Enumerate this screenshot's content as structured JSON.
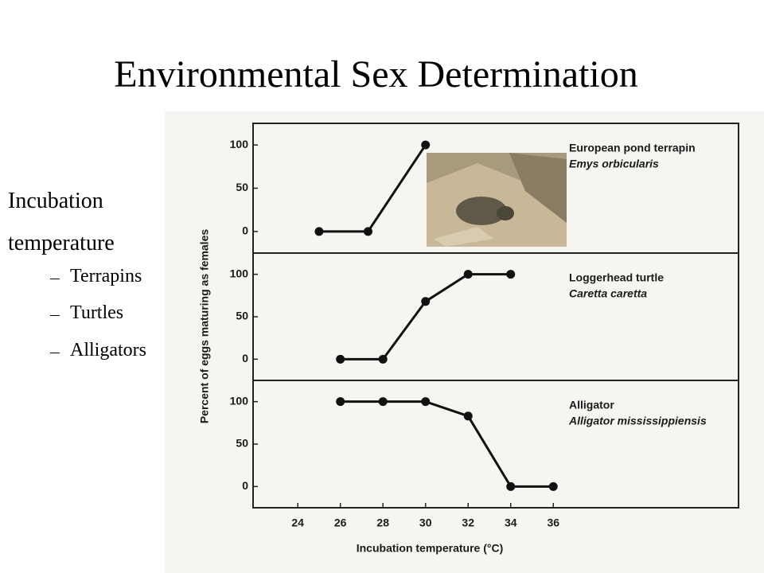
{
  "title": "Environmental Sex Determination",
  "bullets": {
    "main": "Incubation temperature",
    "items": [
      "Terrapins",
      "Turtles",
      "Alligators"
    ]
  },
  "chart_data": [
    {
      "type": "line",
      "title": "European pond terrapin",
      "subtitle": "Emys orbicularis",
      "x": [
        25,
        27.3,
        30
      ],
      "values": [
        0,
        0,
        100
      ],
      "color": "#111111",
      "xlim": [
        21.9,
        44.7
      ],
      "ylim": [
        -25,
        125
      ],
      "yticks": [
        0,
        50,
        100
      ]
    },
    {
      "type": "line",
      "title": "Loggerhead turtle",
      "subtitle": "Caretta caretta",
      "y_label": "Percent of eggs maturing as females",
      "x": [
        26,
        28,
        30,
        32,
        34
      ],
      "values": [
        0,
        0,
        68,
        100,
        100
      ],
      "color": "#111111",
      "xlim": [
        21.9,
        44.7
      ],
      "ylim": [
        -25,
        125
      ],
      "yticks": [
        0,
        50,
        100
      ]
    },
    {
      "type": "line",
      "title": "Alligator",
      "subtitle": "Alligator mississippiensis",
      "x_label": "Incubation temperature (°C)",
      "x": [
        26,
        28,
        30,
        32,
        34,
        36
      ],
      "values": [
        100,
        100,
        100,
        83,
        0,
        0
      ],
      "color": "#111111",
      "xlim": [
        21.9,
        44.7
      ],
      "xticks": [
        24,
        26,
        28,
        30,
        32,
        34,
        36
      ],
      "ylim": [
        -25,
        125
      ],
      "yticks": [
        0,
        50,
        100
      ]
    }
  ]
}
